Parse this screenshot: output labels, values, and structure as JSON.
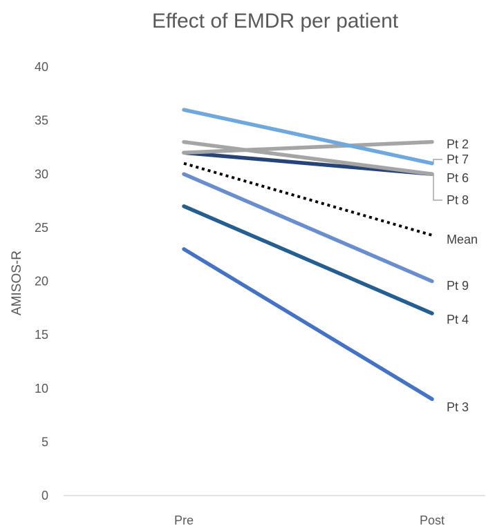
{
  "chart_data": {
    "type": "line",
    "title": "Effect of EMDR per patient",
    "xlabel": "",
    "ylabel": "AMISOS-R",
    "categories": [
      "Pre",
      "Post"
    ],
    "ylim": [
      0,
      40
    ],
    "yticks": [
      0,
      5,
      10,
      15,
      20,
      25,
      30,
      35,
      40
    ],
    "grid": false,
    "legend": "none (series labelled at line ends)",
    "series": [
      {
        "name": "Pt 3",
        "values": [
          23,
          9
        ],
        "color": "#4472C4",
        "dash": false
      },
      {
        "name": "Pt 4",
        "values": [
          27,
          17
        ],
        "color": "#255E91",
        "dash": false
      },
      {
        "name": "Pt 9",
        "values": [
          30,
          20
        ],
        "color": "#698ED0",
        "dash": false
      },
      {
        "name": "Pt 8",
        "values": [
          32,
          30
        ],
        "color": "#264478",
        "dash": false
      },
      {
        "name": "Pt 6",
        "values": [
          33,
          30
        ],
        "color": "#A5A5A5",
        "dash": false
      },
      {
        "name": "Pt 2",
        "values": [
          32,
          33
        ],
        "color": "#A5A5A5",
        "dash": false
      },
      {
        "name": "Pt 7",
        "values": [
          36,
          31
        ],
        "color": "#6FA8DC",
        "dash": false
      },
      {
        "name": "Mean",
        "values": [
          31,
          24.3
        ],
        "color": "#000000",
        "dash": true
      }
    ]
  }
}
